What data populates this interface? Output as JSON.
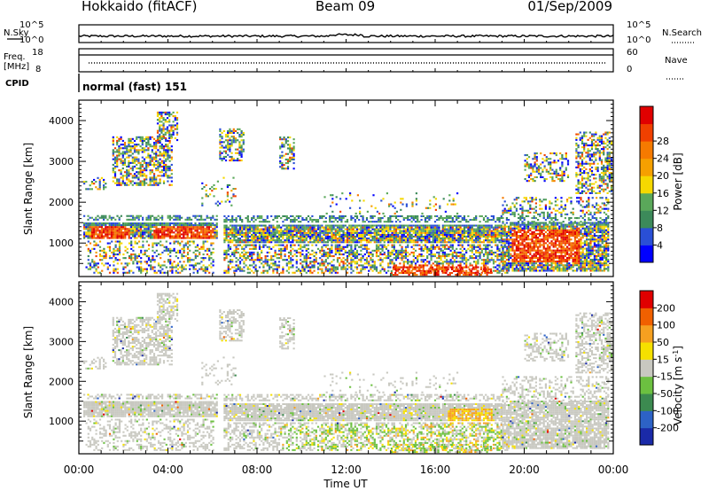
{
  "header": {
    "station": "Hokkaido (fitACF)",
    "beam": "Beam 09",
    "date": "01/Sep/2009"
  },
  "top_panels": {
    "noise": {
      "left_label": "N.Sky",
      "right_label": "N.Search",
      "left_ticks": [
        "10^5",
        "10^0"
      ],
      "right_ticks": [
        "10^5",
        "10^0"
      ]
    },
    "freq": {
      "left_label_1": "Freq.",
      "left_label_2": "[MHz]",
      "right_label": "Nave",
      "left_ticks": [
        "18",
        "8"
      ],
      "right_ticks": [
        "60",
        "0"
      ]
    },
    "cpid": {
      "label": "CPID",
      "text": "normal (fast) 151"
    }
  },
  "colors": {
    "power_scale": [
      "#0000ff",
      "#2a4fd6",
      "#3c8a5a",
      "#5aa85a",
      "#f5d800",
      "#f5a000",
      "#f57a00",
      "#f04000",
      "#e00000"
    ],
    "velocity_scale": [
      "#1a2aa8",
      "#2d62c6",
      "#3c8a50",
      "#6cc040",
      "#c8c8c0",
      "#f5e000",
      "#f5a020",
      "#f06000",
      "#e00000"
    ]
  },
  "chart_data": [
    {
      "type": "heatmap",
      "name": "power",
      "xlabel": "",
      "ylabel": "Slant Range [km]",
      "xlim": [
        0,
        24
      ],
      "ylim": [
        180,
        4500
      ],
      "yticks": [
        "1000",
        "2000",
        "3000",
        "4000"
      ],
      "colorbar": {
        "label": "Power [dB]",
        "ticks": [
          "4",
          "8",
          "12",
          "16",
          "20",
          "24",
          "28"
        ]
      }
    },
    {
      "type": "heatmap",
      "name": "velocity",
      "xlabel": "Time UT",
      "ylabel": "Slant Range [km]",
      "xlim": [
        0,
        24
      ],
      "ylim": [
        180,
        4500
      ],
      "xticks": [
        "00:00",
        "04:00",
        "08:00",
        "12:00",
        "16:00",
        "20:00",
        "00:00"
      ],
      "yticks": [
        "1000",
        "2000",
        "3000",
        "4000"
      ],
      "colorbar": {
        "label_main": "Velocity [m s",
        "label_sup": "-1",
        "label_end": "]",
        "ticks": [
          "200",
          "100",
          "50",
          "15",
          "-15",
          "-50",
          "-100",
          "-200"
        ]
      }
    }
  ]
}
